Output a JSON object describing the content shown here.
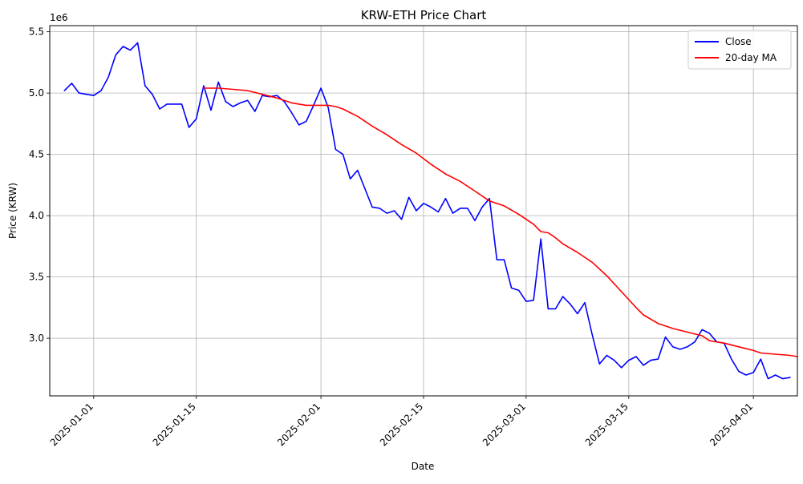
{
  "chart_data": {
    "type": "line",
    "title": "KRW-ETH Price Chart",
    "xlabel": "Date",
    "ylabel": "Price (KRW)",
    "y_offset_label": "1e6",
    "xlim": [
      "2024-12-26",
      "2025-04-07"
    ],
    "ylim": [
      2.53,
      5.55
    ],
    "grid": true,
    "legend_position": "top-right",
    "x_ticks": [
      "2025-01-01",
      "2025-01-15",
      "2025-02-01",
      "2025-02-15",
      "2025-03-01",
      "2025-03-15",
      "2025-04-01"
    ],
    "y_ticks": [
      3.0,
      3.5,
      4.0,
      4.5,
      5.0,
      5.5
    ],
    "y_tick_labels": [
      "3.0",
      "3.5",
      "4.0",
      "4.5",
      "5.0",
      "5.5"
    ],
    "series": [
      {
        "name": "Close",
        "color": "#0000ff",
        "points": [
          [
            "2024-12-28",
            5.02
          ],
          [
            "2024-12-29",
            5.08
          ],
          [
            "2024-12-30",
            5.0
          ],
          [
            "2024-12-31",
            4.99
          ],
          [
            "2025-01-01",
            4.98
          ],
          [
            "2025-01-02",
            5.02
          ],
          [
            "2025-01-03",
            5.13
          ],
          [
            "2025-01-04",
            5.31
          ],
          [
            "2025-01-05",
            5.38
          ],
          [
            "2025-01-06",
            5.35
          ],
          [
            "2025-01-07",
            5.41
          ],
          [
            "2025-01-08",
            5.06
          ],
          [
            "2025-01-09",
            4.99
          ],
          [
            "2025-01-10",
            4.87
          ],
          [
            "2025-01-11",
            4.91
          ],
          [
            "2025-01-12",
            4.91
          ],
          [
            "2025-01-13",
            4.91
          ],
          [
            "2025-01-14",
            4.72
          ],
          [
            "2025-01-15",
            4.79
          ],
          [
            "2025-01-16",
            5.06
          ],
          [
            "2025-01-17",
            4.86
          ],
          [
            "2025-01-18",
            5.09
          ],
          [
            "2025-01-19",
            4.93
          ],
          [
            "2025-01-20",
            4.89
          ],
          [
            "2025-01-21",
            4.92
          ],
          [
            "2025-01-22",
            4.94
          ],
          [
            "2025-01-23",
            4.85
          ],
          [
            "2025-01-24",
            4.98
          ],
          [
            "2025-01-25",
            4.97
          ],
          [
            "2025-01-26",
            4.98
          ],
          [
            "2025-01-27",
            4.93
          ],
          [
            "2025-01-28",
            4.84
          ],
          [
            "2025-01-29",
            4.74
          ],
          [
            "2025-01-30",
            4.77
          ],
          [
            "2025-01-31",
            4.9
          ],
          [
            "2025-02-01",
            5.04
          ],
          [
            "2025-02-02",
            4.88
          ],
          [
            "2025-02-03",
            4.54
          ],
          [
            "2025-02-04",
            4.5
          ],
          [
            "2025-02-05",
            4.3
          ],
          [
            "2025-02-06",
            4.37
          ],
          [
            "2025-02-07",
            4.22
          ],
          [
            "2025-02-08",
            4.07
          ],
          [
            "2025-02-09",
            4.06
          ],
          [
            "2025-02-10",
            4.02
          ],
          [
            "2025-02-11",
            4.04
          ],
          [
            "2025-02-12",
            3.97
          ],
          [
            "2025-02-13",
            4.15
          ],
          [
            "2025-02-14",
            4.04
          ],
          [
            "2025-02-15",
            4.1
          ],
          [
            "2025-02-16",
            4.07
          ],
          [
            "2025-02-17",
            4.03
          ],
          [
            "2025-02-18",
            4.14
          ],
          [
            "2025-02-19",
            4.02
          ],
          [
            "2025-02-20",
            4.06
          ],
          [
            "2025-02-21",
            4.06
          ],
          [
            "2025-02-22",
            3.96
          ],
          [
            "2025-02-23",
            4.07
          ],
          [
            "2025-02-24",
            4.14
          ],
          [
            "2025-02-25",
            3.64
          ],
          [
            "2025-02-26",
            3.64
          ],
          [
            "2025-02-27",
            3.41
          ],
          [
            "2025-02-28",
            3.39
          ],
          [
            "2025-03-01",
            3.3
          ],
          [
            "2025-03-02",
            3.31
          ],
          [
            "2025-03-03",
            3.81
          ],
          [
            "2025-03-04",
            3.24
          ],
          [
            "2025-03-05",
            3.24
          ],
          [
            "2025-03-06",
            3.34
          ],
          [
            "2025-03-07",
            3.28
          ],
          [
            "2025-03-08",
            3.2
          ],
          [
            "2025-03-09",
            3.29
          ],
          [
            "2025-03-10",
            3.03
          ],
          [
            "2025-03-11",
            2.79
          ],
          [
            "2025-03-12",
            2.86
          ],
          [
            "2025-03-13",
            2.82
          ],
          [
            "2025-03-14",
            2.76
          ],
          [
            "2025-03-15",
            2.82
          ],
          [
            "2025-03-16",
            2.85
          ],
          [
            "2025-03-17",
            2.78
          ],
          [
            "2025-03-18",
            2.82
          ],
          [
            "2025-03-19",
            2.83
          ],
          [
            "2025-03-20",
            3.01
          ],
          [
            "2025-03-21",
            2.93
          ],
          [
            "2025-03-22",
            2.91
          ],
          [
            "2025-03-23",
            2.93
          ],
          [
            "2025-03-24",
            2.97
          ],
          [
            "2025-03-25",
            3.07
          ],
          [
            "2025-03-26",
            3.04
          ],
          [
            "2025-03-27",
            2.97
          ],
          [
            "2025-03-28",
            2.96
          ],
          [
            "2025-03-29",
            2.83
          ],
          [
            "2025-03-30",
            2.73
          ],
          [
            "2025-03-31",
            2.7
          ],
          [
            "2025-04-01",
            2.72
          ],
          [
            "2025-04-02",
            2.83
          ],
          [
            "2025-04-03",
            2.67
          ],
          [
            "2025-04-04",
            2.7
          ],
          [
            "2025-04-05",
            2.67
          ],
          [
            "2025-04-06",
            2.68
          ]
        ]
      },
      {
        "name": "20-day MA",
        "color": "#ff0000",
        "points": [
          [
            "2025-01-16",
            5.04
          ],
          [
            "2025-01-18",
            5.04
          ],
          [
            "2025-01-20",
            5.03
          ],
          [
            "2025-01-22",
            5.02
          ],
          [
            "2025-01-24",
            4.99
          ],
          [
            "2025-01-26",
            4.96
          ],
          [
            "2025-01-28",
            4.92
          ],
          [
            "2025-01-30",
            4.9
          ],
          [
            "2025-02-01",
            4.9
          ],
          [
            "2025-02-02",
            4.9
          ],
          [
            "2025-02-03",
            4.89
          ],
          [
            "2025-02-04",
            4.87
          ],
          [
            "2025-02-05",
            4.84
          ],
          [
            "2025-02-06",
            4.81
          ],
          [
            "2025-02-08",
            4.73
          ],
          [
            "2025-02-10",
            4.66
          ],
          [
            "2025-02-12",
            4.58
          ],
          [
            "2025-02-14",
            4.51
          ],
          [
            "2025-02-16",
            4.42
          ],
          [
            "2025-02-18",
            4.34
          ],
          [
            "2025-02-20",
            4.28
          ],
          [
            "2025-02-22",
            4.2
          ],
          [
            "2025-02-24",
            4.12
          ],
          [
            "2025-02-26",
            4.08
          ],
          [
            "2025-02-28",
            4.01
          ],
          [
            "2025-03-02",
            3.93
          ],
          [
            "2025-03-03",
            3.87
          ],
          [
            "2025-03-04",
            3.86
          ],
          [
            "2025-03-05",
            3.82
          ],
          [
            "2025-03-06",
            3.77
          ],
          [
            "2025-03-08",
            3.7
          ],
          [
            "2025-03-10",
            3.62
          ],
          [
            "2025-03-12",
            3.51
          ],
          [
            "2025-03-14",
            3.38
          ],
          [
            "2025-03-16",
            3.25
          ],
          [
            "2025-03-17",
            3.19
          ],
          [
            "2025-03-19",
            3.12
          ],
          [
            "2025-03-21",
            3.08
          ],
          [
            "2025-03-23",
            3.05
          ],
          [
            "2025-03-25",
            3.02
          ],
          [
            "2025-03-26",
            2.98
          ],
          [
            "2025-03-28",
            2.96
          ],
          [
            "2025-03-30",
            2.93
          ],
          [
            "2025-04-01",
            2.9
          ],
          [
            "2025-04-02",
            2.88
          ],
          [
            "2025-04-04",
            2.87
          ],
          [
            "2025-04-06",
            2.86
          ],
          [
            "2025-04-07",
            2.85
          ]
        ]
      }
    ]
  }
}
